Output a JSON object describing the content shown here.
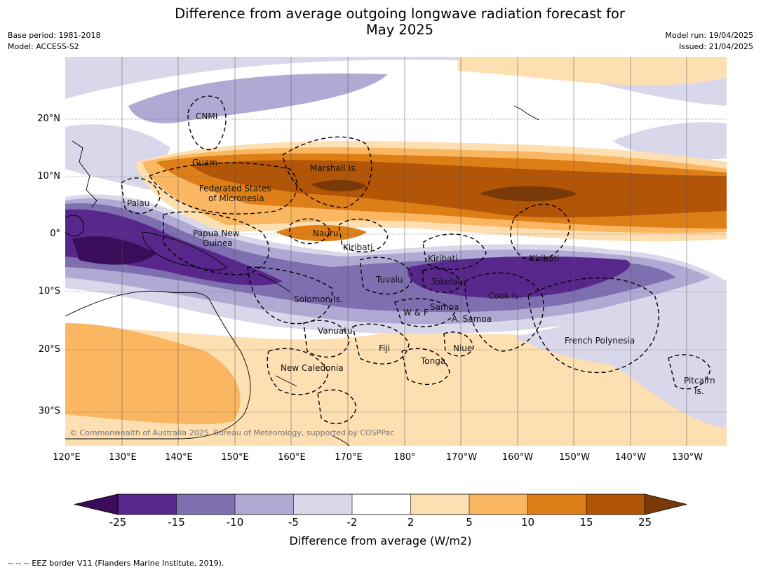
{
  "title_line1": "Difference from average outgoing longwave radiation forecast for",
  "title_line2": "May 2025",
  "base_period": "Base period: 1981-2018",
  "model": "Model: ACCESS-S2",
  "model_run": "Model run: 19/04/2025",
  "issued": "Issued: 21/04/2025",
  "credit": "© Commonwealth of Australia 2025, Bureau of Meteorology, supported by COSPPac",
  "lat_labels": [
    "20°N",
    "10°N",
    "0°",
    "10°S",
    "20°S",
    "30°S"
  ],
  "lon_labels": [
    "120°E",
    "130°E",
    "140°E",
    "150°E",
    "160°E",
    "170°E",
    "180°",
    "170°W",
    "160°W",
    "150°W",
    "140°W",
    "130°W"
  ],
  "places": {
    "cnmi": "CNMI",
    "guam": "Guam",
    "marshall": "Marshall Is.",
    "fsm1": "Federated States",
    "fsm2": "of Micronesia",
    "palau": "Palau",
    "png1": "Papua New",
    "png2": "Guinea",
    "nauru": "Nauru",
    "kiribati_w": "Kiribati",
    "kiribati_c": "Kiribati",
    "kiribati_e": "Kiribati",
    "tuvalu": "Tuvalu",
    "tokelau": "Tokelau",
    "cook": "Cook Is.",
    "solomon": "Solomon Is.",
    "wf": "W & F",
    "samoa": "Samoa",
    "asamoa": "A. Samoa",
    "vanuatu": "Vanuatu",
    "fiji": "Fiji",
    "niue": "Niue",
    "tonga": "Tonga",
    "frpoly": "French Polynesia",
    "pitcairn1": "Pitcairn",
    "pitcairn2": "Is.",
    "newcal": "New Caledonia"
  },
  "colorbar": {
    "title": "Difference from average (W/m2)",
    "tick_labels": [
      "-25",
      "-15",
      "-10",
      "-5",
      "-2",
      "2",
      "5",
      "10",
      "15",
      "25"
    ],
    "colors": [
      "#3a0c5a",
      "#58278c",
      "#7e6fb0",
      "#b0a9d3",
      "#d9d8ea",
      "#ffffff",
      "#fddfb2",
      "#fab660",
      "#de7e16",
      "#b25507",
      "#7a3a08"
    ]
  },
  "footer": "--  --  -- EEZ border V11 (Flanders Marine Institute, 2019)."
}
